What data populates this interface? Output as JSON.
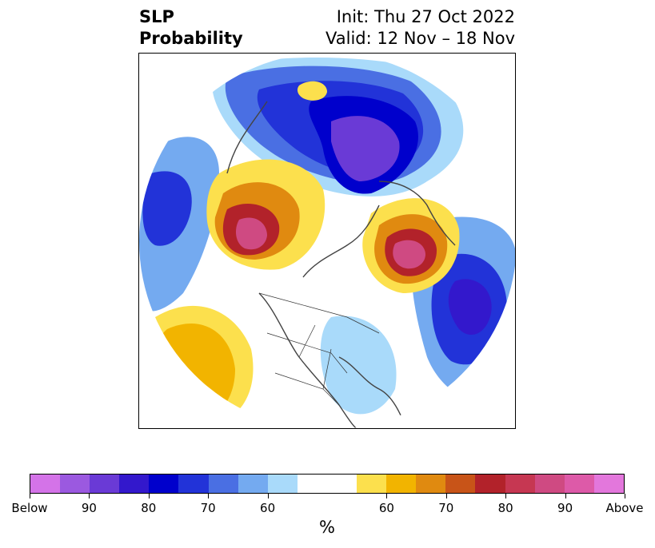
{
  "title": {
    "left_line1": "SLP",
    "left_line2": "Probability",
    "right_line1": "Init: Thu 27 Oct 2022",
    "right_line2": "Valid: 12 Nov – 18 Nov"
  },
  "colorbar": {
    "unit_label": "%",
    "tick_labels": [
      "Below",
      "90",
      "80",
      "70",
      "60",
      "60",
      "70",
      "80",
      "90",
      "Above"
    ],
    "colors": [
      "#d473e8",
      "#9b59e0",
      "#6a3ad6",
      "#3318cc",
      "#0000cc",
      "#2233d8",
      "#4a6fe3",
      "#74aaf0",
      "#a9dafa",
      "#ffffff",
      "#fce04d",
      "#f2b400",
      "#e08a10",
      "#c85418",
      "#b2222a",
      "#c63752",
      "#cf4a82",
      "#dd5aa8",
      "#e377dc"
    ]
  },
  "map": {
    "projection": "north-polar-stereographic",
    "variable": "SLP probability"
  }
}
